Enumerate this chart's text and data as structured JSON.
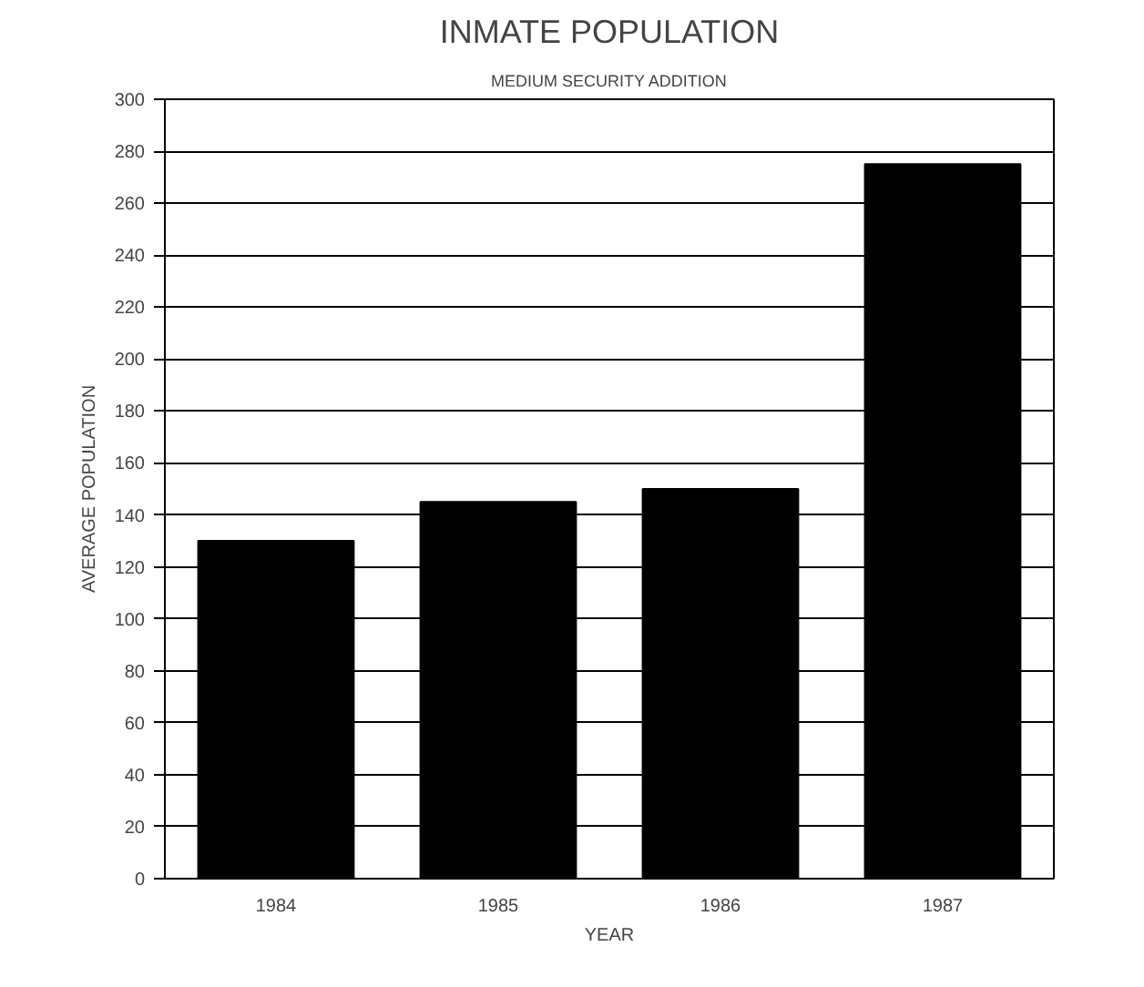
{
  "chart_data": {
    "type": "bar",
    "title": "INMATE POPULATION",
    "subtitle": "MEDIUM SECURITY ADDITION",
    "xlabel": "YEAR",
    "ylabel": "AVERAGE POPULATION",
    "categories": [
      "1984",
      "1985",
      "1986",
      "1987"
    ],
    "values": [
      130,
      145,
      150,
      275
    ],
    "color": "#000000",
    "ylim": [
      0,
      300
    ],
    "yticks": [
      0,
      20,
      40,
      60,
      80,
      100,
      120,
      140,
      160,
      180,
      200,
      220,
      240,
      260,
      280,
      300
    ],
    "grid": "y"
  }
}
